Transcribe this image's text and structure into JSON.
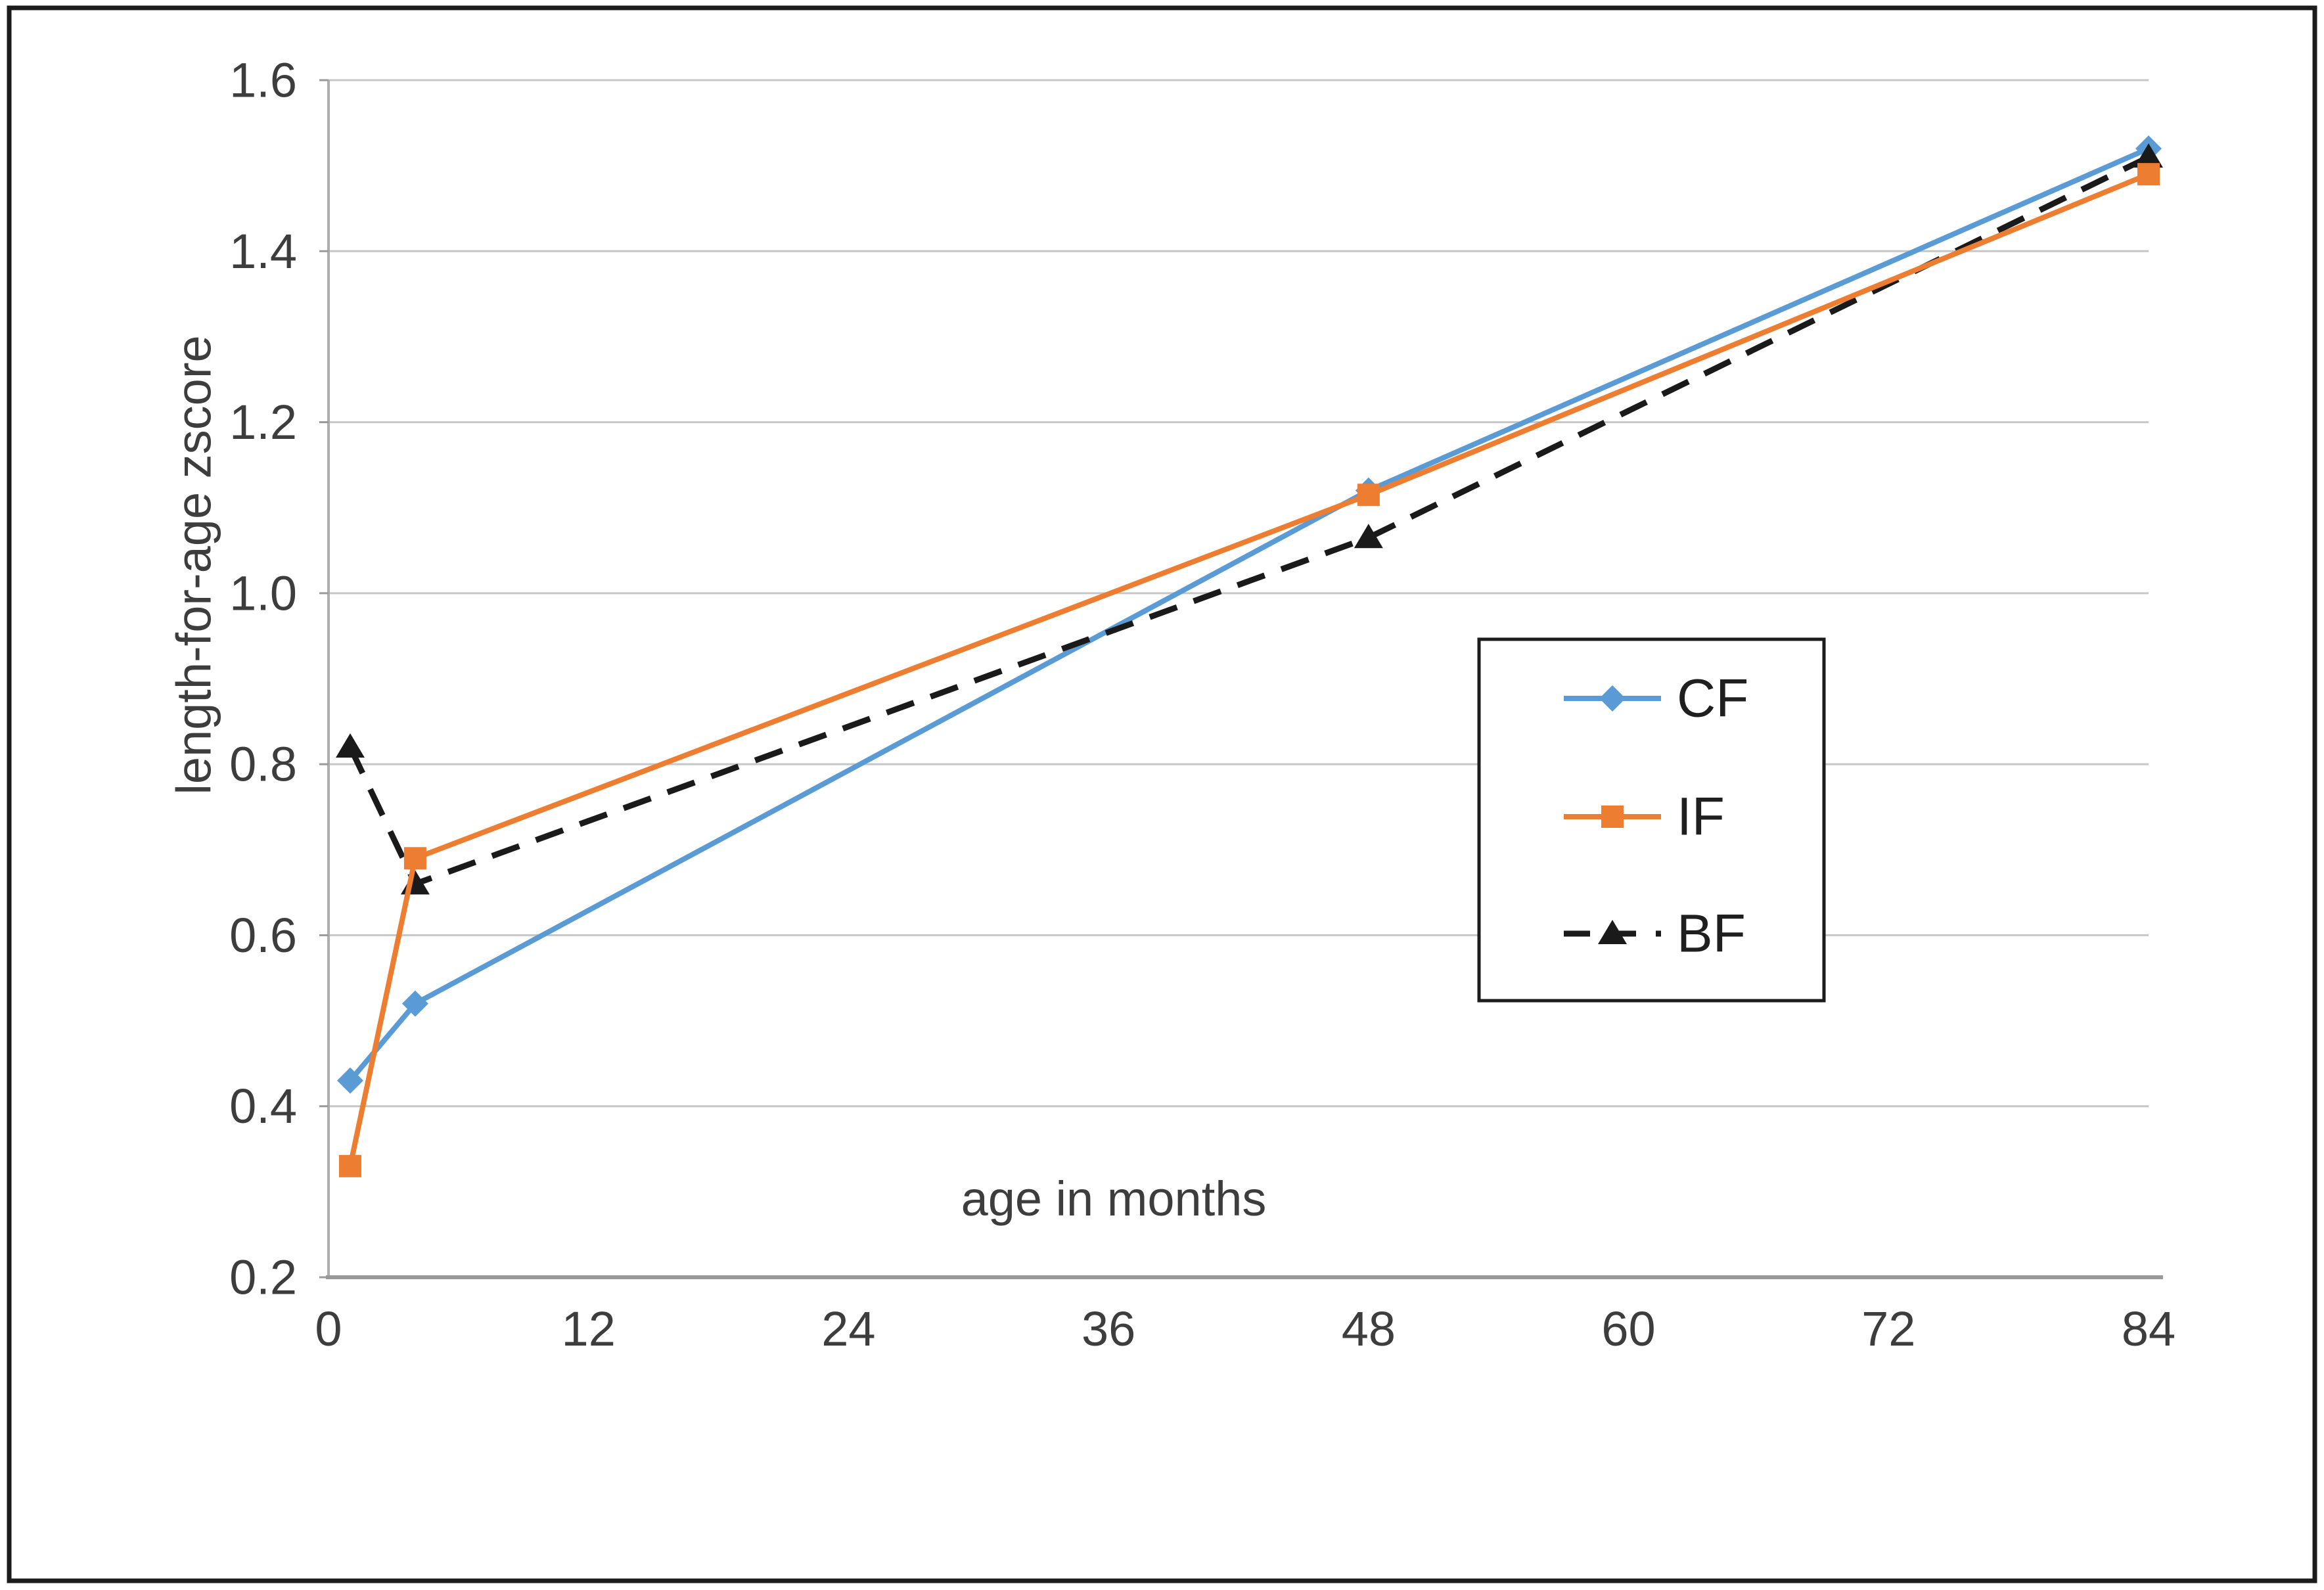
{
  "chart_data": {
    "type": "line",
    "title": "",
    "xlabel": "age in months",
    "ylabel": "length-for-age zscore",
    "xlim": [
      0,
      84
    ],
    "ylim": [
      0.2,
      1.6
    ],
    "x_ticks": [
      0,
      12,
      24,
      36,
      48,
      60,
      72,
      84
    ],
    "y_ticks": [
      0.2,
      0.4,
      0.6,
      0.8,
      1.0,
      1.2,
      1.4,
      1.6
    ],
    "grid": true,
    "legend_position": "inside-right",
    "x": [
      1,
      4,
      48,
      84
    ],
    "series": [
      {
        "name": "CF",
        "color": "#5B9BD5",
        "marker": "diamond",
        "line_style": "solid",
        "values": [
          0.43,
          0.52,
          1.12,
          1.52
        ]
      },
      {
        "name": "IF",
        "color": "#ED7D31",
        "marker": "square",
        "line_style": "solid",
        "values": [
          0.33,
          0.69,
          1.115,
          1.49
        ]
      },
      {
        "name": "BF",
        "color": "#1A1A1A",
        "marker": "triangle",
        "line_style": "dashed",
        "values": [
          0.82,
          0.66,
          1.065,
          1.51
        ]
      }
    ],
    "draw_order": [
      "CF",
      "BF",
      "IF"
    ],
    "legend_order": [
      "CF",
      "IF",
      "BF"
    ]
  },
  "style_colors": {
    "gridline": "#c6c6c6",
    "x_axis_line": "#9a9a9a",
    "y_axis_line": "#aeaeae",
    "tick_text": "#3d3d3d",
    "legend_text": "#1f1f1f",
    "frame_border": "#1c1c1c",
    "background": "#ffffff"
  }
}
